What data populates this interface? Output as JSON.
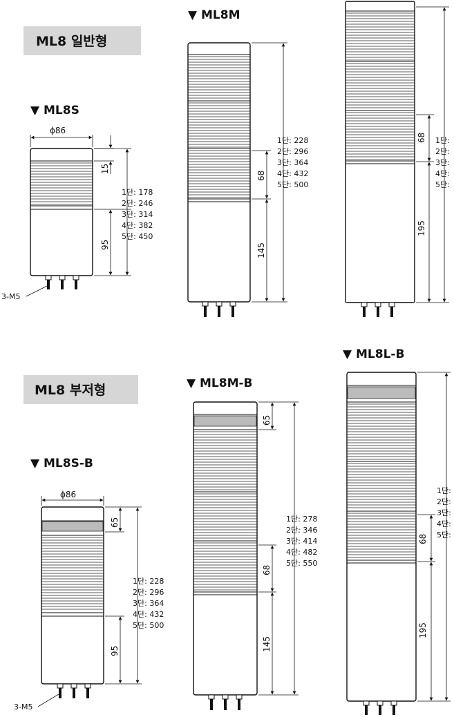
{
  "sections": {
    "general": "ML8 일반형",
    "buzzer": "ML8 부저형"
  },
  "titles": {
    "ml8s": "▼ ML8S",
    "ml8m": "▼ ML8M",
    "ml8sb": "▼ ML8S-B",
    "ml8mb": "▼ ML8M-B",
    "ml8lb": "▼ ML8L-B"
  },
  "dims": {
    "dia": "ϕ86",
    "d15": "15",
    "d68": "68",
    "d95": "95",
    "d145": "145",
    "d195": "195",
    "d65": "65",
    "mount": "3-M5"
  },
  "heights": {
    "ml8s": [
      "1단: 178",
      "2단: 246",
      "3단: 314",
      "4단: 382",
      "5단: 450"
    ],
    "ml8m": [
      "1단: 228",
      "2단: 296",
      "3단: 364",
      "4단: 432",
      "5단: 500"
    ],
    "ml8l": [
      "1단:",
      "2단:",
      "3단:",
      "4단:",
      "5단:"
    ],
    "ml8sb": [
      "1단: 228",
      "2단: 296",
      "3단: 364",
      "4단: 432",
      "5단: 500"
    ],
    "ml8mb": [
      "1단: 278",
      "2단: 346",
      "3단: 414",
      "4단: 482",
      "5단: 550"
    ],
    "ml8lb": [
      "1단:",
      "2단:",
      "3단:",
      "4단:",
      "5단:"
    ]
  }
}
